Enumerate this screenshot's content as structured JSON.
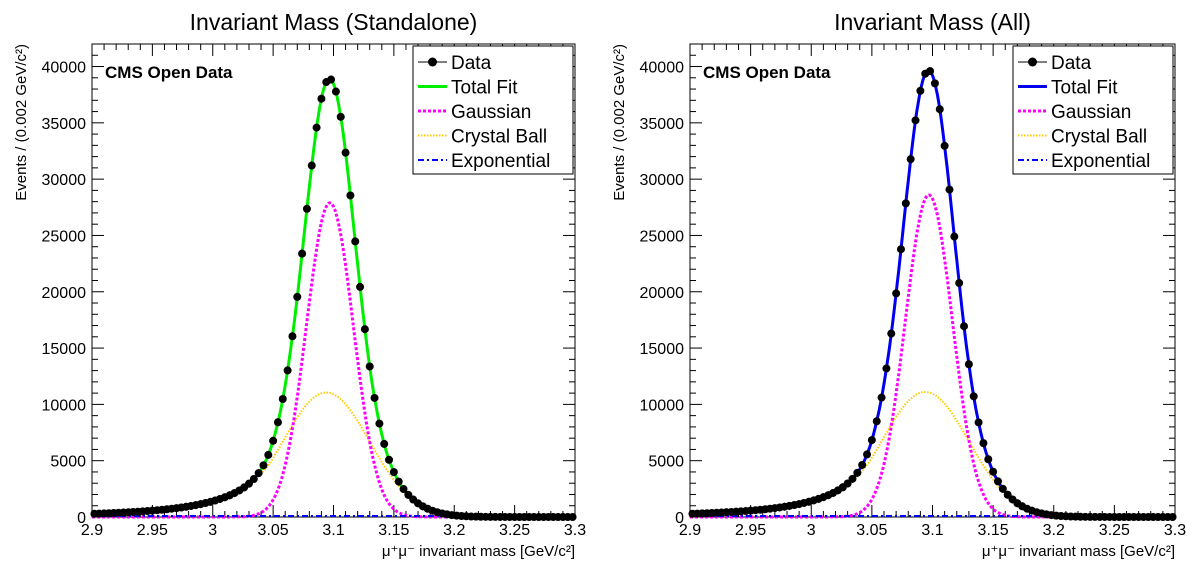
{
  "chart_data": [
    {
      "type": "line",
      "title": "Invariant Mass (Standalone)",
      "xlabel": "μ⁺μ⁻ invariant mass [GeV/c²]",
      "ylabel": "Events / (0.002 GeV/c²)",
      "annotation": "CMS Open Data",
      "xlim": [
        2.9,
        3.3
      ],
      "ylim": [
        0,
        42000
      ],
      "xticks": [
        "2.9",
        "2.95",
        "3",
        "3.05",
        "3.1",
        "3.15",
        "3.2",
        "3.25",
        "3.3"
      ],
      "yticks": [
        "0",
        "5000",
        "10000",
        "15000",
        "20000",
        "25000",
        "30000",
        "35000",
        "40000"
      ],
      "legend_position": "top-right",
      "legend": [
        "Data",
        "Total Fit",
        "Gaussian",
        "Crystal Ball",
        "Exponential"
      ],
      "colors": {
        "data": "#000000",
        "total": "#00ee00",
        "gauss": "#ff00ff",
        "cb": "#ffcc00",
        "expo": "#0000ff"
      },
      "components": {
        "gaussian": {
          "norm": 27900,
          "mean": 3.097,
          "sigma": 0.0195
        },
        "crystal_ball": {
          "norm": 11050,
          "mean": 3.094,
          "sigma": 0.036,
          "alpha": 1.2,
          "n": 3
        },
        "exponential": {
          "norm": 0,
          "slope": -3
        }
      },
      "data_peak": 39000,
      "series": [
        {
          "name": "Data",
          "style": "points"
        },
        {
          "name": "Total Fit",
          "style": "solid"
        },
        {
          "name": "Gaussian",
          "style": "dashed"
        },
        {
          "name": "Crystal Ball",
          "style": "dotted"
        },
        {
          "name": "Exponential",
          "style": "dashdot"
        }
      ]
    },
    {
      "type": "line",
      "title": "Invariant Mass (All)",
      "xlabel": "μ⁺μ⁻ invariant mass [GeV/c²]",
      "ylabel": "Events / (0.002 GeV/c²)",
      "annotation": "CMS Open Data",
      "xlim": [
        2.9,
        3.3
      ],
      "ylim": [
        0,
        42000
      ],
      "xticks": [
        "2.9",
        "2.95",
        "3",
        "3.05",
        "3.1",
        "3.15",
        "3.2",
        "3.25",
        "3.3"
      ],
      "yticks": [
        "0",
        "5000",
        "10000",
        "15000",
        "20000",
        "25000",
        "30000",
        "35000",
        "40000"
      ],
      "legend_position": "top-right",
      "legend": [
        "Data",
        "Total Fit",
        "Gaussian",
        "Crystal Ball",
        "Exponential"
      ],
      "colors": {
        "data": "#000000",
        "total": "#0000ee",
        "gauss": "#ff00ff",
        "cb": "#ffcc00",
        "expo": "#0000ff"
      },
      "components": {
        "gaussian": {
          "norm": 28600,
          "mean": 3.097,
          "sigma": 0.0195
        },
        "crystal_ball": {
          "norm": 11100,
          "mean": 3.094,
          "sigma": 0.036,
          "alpha": 1.2,
          "n": 3
        },
        "exponential": {
          "norm": 0,
          "slope": -3
        }
      },
      "data_peak": 40000,
      "series": [
        {
          "name": "Data",
          "style": "points"
        },
        {
          "name": "Total Fit",
          "style": "solid"
        },
        {
          "name": "Gaussian",
          "style": "dashed"
        },
        {
          "name": "Crystal Ball",
          "style": "dotted"
        },
        {
          "name": "Exponential",
          "style": "dashdot"
        }
      ]
    }
  ]
}
